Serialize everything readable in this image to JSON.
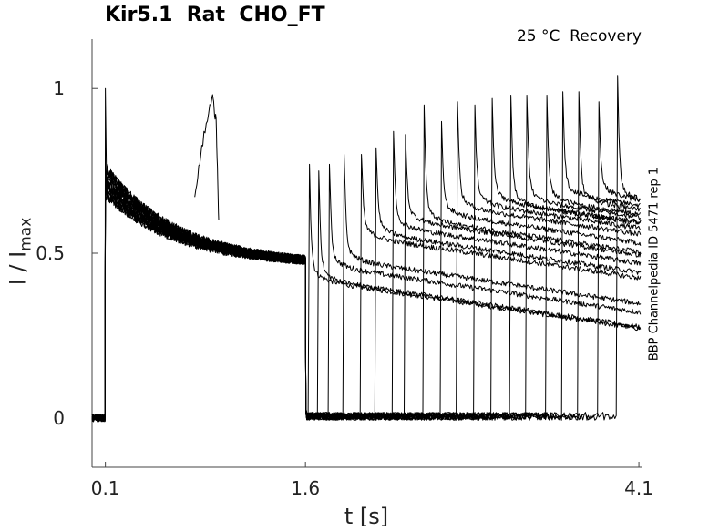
{
  "chart_data": {
    "type": "line",
    "title": "Kir5.1  Rat  CHO_FT",
    "subtitle": "25 °C  Recovery",
    "side_label": "BBP Channelpedia ID 5471 rep 1",
    "xlabel": "t [s]",
    "ylabel": "I / I",
    "ylabel_sub": "max",
    "xlim": [
      0.0,
      4.12
    ],
    "ylim": [
      -0.15,
      1.15
    ],
    "xticks": [
      0.1,
      1.6,
      4.1
    ],
    "xtick_labels": [
      "0.1",
      "1.6",
      "4.1"
    ],
    "yticks": [
      0,
      0.5,
      1
    ],
    "ytick_labels": [
      "0",
      "0.5",
      "1"
    ],
    "grid": false,
    "legend": "none",
    "line_color": "#000000",
    "pre_pulse_time": 0.1,
    "conditioning_end": 1.6,
    "conditioning_decay": {
      "start_value": 0.72,
      "end_value": 0.48
    },
    "bump_trace": {
      "x": [
        0.77,
        0.83,
        0.9,
        0.93,
        0.95
      ],
      "y": [
        0.68,
        0.84,
        0.98,
        0.9,
        0.6
      ]
    },
    "series": [
      {
        "recovery_time": 1.63,
        "plateau": 0.42,
        "spike": 0.77
      },
      {
        "recovery_time": 1.7,
        "plateau": 0.42,
        "spike": 0.75
      },
      {
        "recovery_time": 1.78,
        "plateau": 0.46,
        "spike": 0.77
      },
      {
        "recovery_time": 1.89,
        "plateau": 0.48,
        "spike": 0.8
      },
      {
        "recovery_time": 2.02,
        "plateau": 0.55,
        "spike": 0.8
      },
      {
        "recovery_time": 2.13,
        "plateau": 0.56,
        "spike": 0.82
      },
      {
        "recovery_time": 2.26,
        "plateau": 0.58,
        "spike": 0.87
      },
      {
        "recovery_time": 2.35,
        "plateau": 0.6,
        "spike": 0.86
      },
      {
        "recovery_time": 2.49,
        "plateau": 0.6,
        "spike": 0.95
      },
      {
        "recovery_time": 2.62,
        "plateau": 0.62,
        "spike": 0.9
      },
      {
        "recovery_time": 2.74,
        "plateau": 0.64,
        "spike": 0.96
      },
      {
        "recovery_time": 2.87,
        "plateau": 0.65,
        "spike": 0.95
      },
      {
        "recovery_time": 3.0,
        "plateau": 0.66,
        "spike": 0.97
      },
      {
        "recovery_time": 3.14,
        "plateau": 0.65,
        "spike": 0.98
      },
      {
        "recovery_time": 3.26,
        "plateau": 0.66,
        "spike": 0.98
      },
      {
        "recovery_time": 3.41,
        "plateau": 0.66,
        "spike": 0.98
      },
      {
        "recovery_time": 3.53,
        "plateau": 0.68,
        "spike": 0.99
      },
      {
        "recovery_time": 3.65,
        "plateau": 0.66,
        "spike": 0.99
      },
      {
        "recovery_time": 3.8,
        "plateau": 0.68,
        "spike": 0.96
      },
      {
        "recovery_time": 3.94,
        "plateau": 0.67,
        "spike": 1.04
      }
    ]
  }
}
